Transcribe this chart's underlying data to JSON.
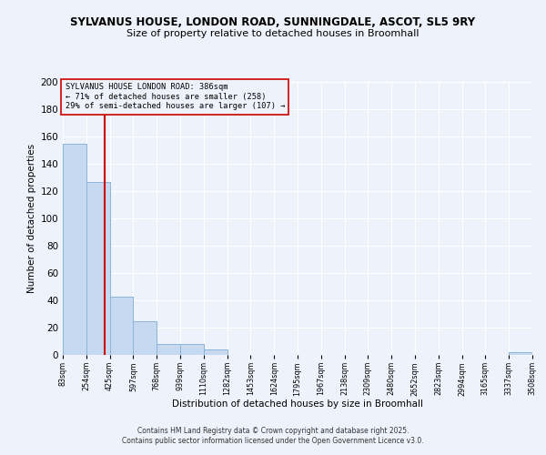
{
  "title1": "SYLVANUS HOUSE, LONDON ROAD, SUNNINGDALE, ASCOT, SL5 9RY",
  "title2": "Size of property relative to detached houses in Broomhall",
  "xlabel": "Distribution of detached houses by size in Broomhall",
  "ylabel": "Number of detached properties",
  "bar_left_edges": [
    83,
    254,
    425,
    597,
    768,
    939,
    1110,
    1282,
    1453,
    1624,
    1795,
    1967,
    2138,
    2309,
    2480,
    2652,
    2823,
    2994,
    3165,
    3337
  ],
  "bar_right_edges": [
    254,
    425,
    597,
    768,
    939,
    1110,
    1282,
    1453,
    1624,
    1795,
    1967,
    2138,
    2309,
    2480,
    2652,
    2823,
    2994,
    3165,
    3337,
    3508
  ],
  "bar_heights": [
    155,
    127,
    43,
    25,
    8,
    8,
    4,
    0,
    0,
    0,
    0,
    0,
    0,
    0,
    0,
    0,
    0,
    0,
    0,
    2
  ],
  "bar_color": "#c6d9f1",
  "bar_edge_color": "#8ab4d8",
  "x_tick_labels": [
    "83sqm",
    "254sqm",
    "425sqm",
    "597sqm",
    "768sqm",
    "939sqm",
    "1110sqm",
    "1282sqm",
    "1453sqm",
    "1624sqm",
    "1795sqm",
    "1967sqm",
    "2138sqm",
    "2309sqm",
    "2480sqm",
    "2652sqm",
    "2823sqm",
    "2994sqm",
    "3165sqm",
    "3337sqm",
    "3508sqm"
  ],
  "ylim": [
    0,
    200
  ],
  "yticks": [
    0,
    20,
    40,
    60,
    80,
    100,
    120,
    140,
    160,
    180,
    200
  ],
  "vline_x": 386,
  "vline_color": "#cc0000",
  "annotation_title": "SYLVANUS HOUSE LONDON ROAD: 386sqm",
  "annotation_line1": "← 71% of detached houses are smaller (258)",
  "annotation_line2": "29% of semi-detached houses are larger (107) →",
  "annotation_box_edge_color": "#cc0000",
  "background_color": "#eef2fb",
  "grid_color": "#ffffff",
  "footer1": "Contains HM Land Registry data © Crown copyright and database right 2025.",
  "footer2": "Contains public sector information licensed under the Open Government Licence v3.0."
}
